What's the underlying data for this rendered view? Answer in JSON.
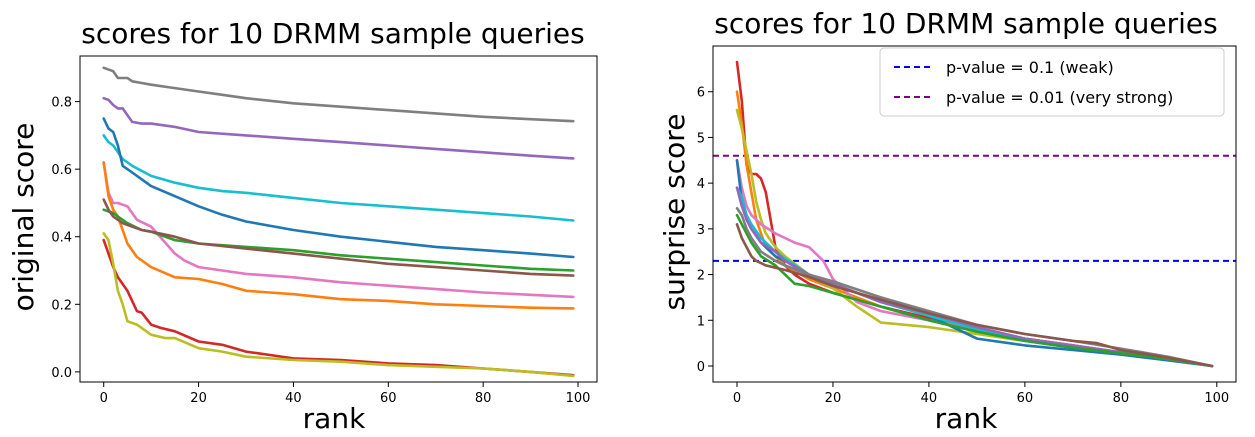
{
  "chart_data": [
    {
      "type": "line",
      "title": "scores for 10 DRMM sample queries",
      "xlabel": "rank",
      "ylabel": "original score",
      "xlim": [
        -5,
        104
      ],
      "ylim": [
        -0.03,
        0.935
      ],
      "xticks": [
        0,
        20,
        40,
        60,
        80,
        100
      ],
      "yticks": [
        0.0,
        0.2,
        0.4,
        0.6,
        0.8
      ],
      "ytick_labels": [
        "0.0",
        "0.2",
        "0.4",
        "0.6",
        "0.8"
      ],
      "grid": false,
      "series": [
        {
          "color": "#7f7f7f",
          "x": [
            0,
            2,
            3,
            5,
            6,
            8,
            10,
            15,
            20,
            25,
            30,
            40,
            50,
            60,
            70,
            80,
            90,
            99
          ],
          "y": [
            0.9,
            0.89,
            0.87,
            0.87,
            0.86,
            0.855,
            0.85,
            0.84,
            0.83,
            0.82,
            0.81,
            0.795,
            0.785,
            0.775,
            0.765,
            0.755,
            0.748,
            0.742
          ]
        },
        {
          "color": "#9467bd",
          "x": [
            0,
            1,
            2,
            3,
            4,
            5,
            6,
            8,
            10,
            15,
            20,
            30,
            40,
            50,
            60,
            70,
            80,
            90,
            99
          ],
          "y": [
            0.81,
            0.805,
            0.79,
            0.78,
            0.78,
            0.76,
            0.74,
            0.735,
            0.735,
            0.725,
            0.71,
            0.7,
            0.69,
            0.68,
            0.67,
            0.66,
            0.65,
            0.64,
            0.632
          ]
        },
        {
          "color": "#17becf",
          "x": [
            0,
            1,
            2,
            4,
            6,
            10,
            15,
            20,
            25,
            30,
            40,
            50,
            60,
            70,
            80,
            90,
            99
          ],
          "y": [
            0.7,
            0.68,
            0.67,
            0.63,
            0.61,
            0.58,
            0.56,
            0.545,
            0.535,
            0.53,
            0.515,
            0.5,
            0.49,
            0.48,
            0.47,
            0.46,
            0.448
          ]
        },
        {
          "color": "#1f77b4",
          "x": [
            0,
            1,
            2,
            3,
            4,
            6,
            8,
            10,
            15,
            20,
            25,
            30,
            40,
            50,
            60,
            70,
            80,
            90,
            99
          ],
          "y": [
            0.75,
            0.72,
            0.71,
            0.67,
            0.61,
            0.59,
            0.57,
            0.55,
            0.52,
            0.49,
            0.465,
            0.445,
            0.42,
            0.4,
            0.385,
            0.37,
            0.36,
            0.35,
            0.34
          ]
        },
        {
          "color": "#d62728",
          "x": [
            0,
            1,
            2,
            3,
            5,
            7,
            8,
            10,
            12,
            15,
            20,
            25,
            30,
            40,
            50,
            60,
            70,
            80,
            90,
            99
          ],
          "y": [
            0.39,
            0.35,
            0.31,
            0.28,
            0.24,
            0.18,
            0.175,
            0.14,
            0.13,
            0.12,
            0.09,
            0.08,
            0.06,
            0.04,
            0.035,
            0.025,
            0.02,
            0.01,
            0.0,
            -0.01
          ]
        },
        {
          "color": "#bcbd22",
          "x": [
            0,
            1,
            2,
            3,
            4,
            5,
            7,
            10,
            13,
            15,
            20,
            25,
            30,
            40,
            50,
            60,
            70,
            80,
            90,
            99
          ],
          "y": [
            0.41,
            0.39,
            0.32,
            0.24,
            0.2,
            0.15,
            0.14,
            0.11,
            0.1,
            0.1,
            0.07,
            0.06,
            0.045,
            0.035,
            0.03,
            0.02,
            0.015,
            0.01,
            0.0,
            -0.012
          ]
        },
        {
          "color": "#e377c2",
          "x": [
            0,
            1,
            2,
            3,
            5,
            7,
            10,
            15,
            17,
            20,
            30,
            40,
            50,
            60,
            70,
            80,
            90,
            99
          ],
          "y": [
            0.62,
            0.53,
            0.5,
            0.5,
            0.49,
            0.45,
            0.43,
            0.35,
            0.33,
            0.31,
            0.29,
            0.28,
            0.265,
            0.255,
            0.245,
            0.235,
            0.228,
            0.222
          ]
        },
        {
          "color": "#ff7f0e",
          "x": [
            0,
            1,
            2,
            3,
            5,
            7,
            10,
            15,
            20,
            25,
            30,
            40,
            50,
            60,
            70,
            80,
            90,
            99
          ],
          "y": [
            0.62,
            0.52,
            0.48,
            0.46,
            0.38,
            0.34,
            0.31,
            0.28,
            0.275,
            0.26,
            0.24,
            0.23,
            0.215,
            0.21,
            0.2,
            0.195,
            0.19,
            0.188
          ]
        },
        {
          "color": "#2ca02c",
          "x": [
            0,
            2,
            3,
            5,
            8,
            10,
            15,
            20,
            30,
            40,
            50,
            60,
            70,
            80,
            90,
            99
          ],
          "y": [
            0.48,
            0.47,
            0.46,
            0.44,
            0.42,
            0.415,
            0.39,
            0.38,
            0.37,
            0.36,
            0.345,
            0.335,
            0.325,
            0.315,
            0.305,
            0.3
          ]
        },
        {
          "color": "#8c564b",
          "x": [
            0,
            1,
            2,
            4,
            6,
            8,
            10,
            15,
            20,
            30,
            40,
            50,
            60,
            70,
            80,
            90,
            99
          ],
          "y": [
            0.51,
            0.48,
            0.46,
            0.44,
            0.43,
            0.42,
            0.415,
            0.4,
            0.38,
            0.365,
            0.35,
            0.335,
            0.32,
            0.31,
            0.3,
            0.29,
            0.285
          ]
        }
      ]
    },
    {
      "type": "line",
      "title": "scores for 10 DRMM sample queries",
      "xlabel": "rank",
      "ylabel": "surprise score",
      "xlim": [
        -5,
        104
      ],
      "ylim": [
        -0.35,
        7.0
      ],
      "xticks": [
        0,
        20,
        40,
        60,
        80,
        100
      ],
      "yticks": [
        0,
        1,
        2,
        3,
        4,
        5,
        6
      ],
      "ytick_labels": [
        "0",
        "1",
        "2",
        "3",
        "4",
        "5",
        "6"
      ],
      "grid": false,
      "legend_position": "top-right",
      "hlines": [
        {
          "label": "p-value = 0.1 (weak)",
          "y": 2.3,
          "color": "#0000ff"
        },
        {
          "label": "p-value = 0.01 (very strong)",
          "y": 4.6,
          "color": "#800080"
        }
      ],
      "series": [
        {
          "color": "#d62728",
          "x": [
            0,
            1,
            2,
            3,
            4,
            5,
            6,
            7,
            8,
            10,
            12,
            15,
            20,
            30,
            40,
            50,
            60,
            70,
            80,
            90,
            99
          ],
          "y": [
            6.65,
            5.8,
            4.4,
            4.2,
            4.2,
            4.1,
            3.8,
            3.2,
            2.6,
            2.2,
            2.0,
            1.8,
            1.6,
            1.3,
            1.05,
            0.8,
            0.6,
            0.45,
            0.3,
            0.15,
            0.0
          ]
        },
        {
          "color": "#ff7f0e",
          "x": [
            0,
            1,
            2,
            3,
            4,
            5,
            6,
            8,
            10,
            15,
            20,
            30,
            40,
            50,
            60,
            70,
            80,
            90,
            99
          ],
          "y": [
            6.0,
            5.3,
            4.4,
            3.8,
            3.2,
            2.9,
            2.6,
            2.4,
            2.2,
            1.9,
            1.7,
            1.3,
            1.0,
            0.8,
            0.6,
            0.45,
            0.3,
            0.15,
            0.0
          ]
        },
        {
          "color": "#bcbd22",
          "x": [
            0,
            1,
            2,
            3,
            4,
            5,
            6,
            8,
            10,
            15,
            20,
            25,
            30,
            40,
            50,
            60,
            70,
            80,
            90,
            99
          ],
          "y": [
            5.6,
            5.2,
            4.7,
            4.2,
            3.6,
            3.2,
            2.9,
            2.6,
            2.4,
            2.0,
            1.7,
            1.3,
            0.95,
            0.85,
            0.7,
            0.55,
            0.4,
            0.28,
            0.15,
            0.0
          ]
        },
        {
          "color": "#e377c2",
          "x": [
            0,
            1,
            2,
            3,
            5,
            8,
            10,
            12,
            15,
            18,
            20,
            25,
            30,
            40,
            50,
            60,
            70,
            80,
            90,
            99
          ],
          "y": [
            4.5,
            3.9,
            3.5,
            3.3,
            3.1,
            2.9,
            2.8,
            2.7,
            2.6,
            2.3,
            1.9,
            1.4,
            1.2,
            1.0,
            0.8,
            0.6,
            0.45,
            0.3,
            0.15,
            0.0
          ]
        },
        {
          "color": "#1f77b4",
          "x": [
            0,
            1,
            2,
            3,
            5,
            8,
            10,
            15,
            20,
            30,
            40,
            50,
            60,
            70,
            80,
            90,
            99
          ],
          "y": [
            4.5,
            3.6,
            3.2,
            3.0,
            2.7,
            2.4,
            2.3,
            2.0,
            1.8,
            1.4,
            1.1,
            0.6,
            0.45,
            0.35,
            0.25,
            0.12,
            0.0
          ]
        },
        {
          "color": "#17becf",
          "x": [
            0,
            1,
            2,
            3,
            5,
            8,
            10,
            15,
            20,
            30,
            40,
            50,
            60,
            70,
            80,
            90,
            99
          ],
          "y": [
            3.9,
            3.7,
            3.3,
            3.1,
            2.8,
            2.5,
            2.35,
            2.0,
            1.8,
            1.4,
            1.1,
            0.8,
            0.55,
            0.4,
            0.28,
            0.15,
            0.0
          ]
        },
        {
          "color": "#9467bd",
          "x": [
            0,
            1,
            2,
            3,
            5,
            8,
            10,
            15,
            20,
            30,
            40,
            50,
            60,
            70,
            80,
            90,
            99
          ],
          "y": [
            3.9,
            3.5,
            3.2,
            3.0,
            2.7,
            2.5,
            2.3,
            2.0,
            1.8,
            1.4,
            1.15,
            0.85,
            0.6,
            0.45,
            0.3,
            0.15,
            0.0
          ]
        },
        {
          "color": "#2ca02c",
          "x": [
            0,
            1,
            2,
            3,
            5,
            8,
            10,
            12,
            15,
            20,
            30,
            40,
            50,
            60,
            70,
            80,
            90,
            99
          ],
          "y": [
            3.3,
            3.1,
            2.9,
            2.7,
            2.4,
            2.2,
            2.0,
            1.8,
            1.75,
            1.6,
            1.3,
            1.0,
            0.75,
            0.55,
            0.4,
            0.28,
            0.15,
            0.0
          ]
        },
        {
          "color": "#7f7f7f",
          "x": [
            0,
            1,
            2,
            3,
            5,
            8,
            10,
            15,
            20,
            30,
            40,
            50,
            60,
            70,
            80,
            90,
            99
          ],
          "y": [
            3.45,
            3.3,
            3.0,
            2.8,
            2.5,
            2.3,
            2.2,
            2.0,
            1.85,
            1.5,
            1.2,
            0.9,
            0.7,
            0.55,
            0.38,
            0.2,
            0.0
          ]
        },
        {
          "color": "#8c564b",
          "x": [
            0,
            1,
            2,
            3,
            4,
            5,
            6,
            8,
            10,
            15,
            20,
            30,
            40,
            50,
            60,
            70,
            75,
            80,
            90,
            99
          ],
          "y": [
            3.1,
            2.8,
            2.6,
            2.4,
            2.3,
            2.25,
            2.2,
            2.15,
            2.1,
            1.95,
            1.75,
            1.45,
            1.15,
            0.9,
            0.7,
            0.55,
            0.5,
            0.35,
            0.18,
            0.0
          ]
        }
      ]
    }
  ]
}
